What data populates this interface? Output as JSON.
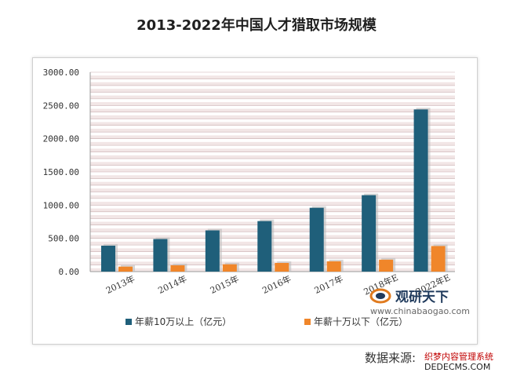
{
  "title": "2013-2022年中国人才猎取市场规模",
  "source_label": "数据来源:",
  "watermark_line1": "织梦内容管理系统",
  "watermark_line2": "DEDECMS.COM",
  "logo": {
    "name": "观研天下",
    "url": "www.chinabaogao.com"
  },
  "colors": {
    "series1": "#1f5f7a",
    "series2": "#f0862a",
    "stripe": "#f2e6e6",
    "grid": "#c9aeb0"
  },
  "chart_data": {
    "type": "bar",
    "categories": [
      "2013年",
      "2014年",
      "2015年",
      "2016年",
      "2017年",
      "2018年E",
      "2022年E"
    ],
    "series": [
      {
        "name": "年薪10万以上（亿元）",
        "values": [
          390,
          490,
          620,
          760,
          960,
          1150,
          2440
        ]
      },
      {
        "name": "年薪十万以下（亿元）",
        "values": [
          75,
          95,
          110,
          130,
          155,
          180,
          385
        ]
      }
    ],
    "yticks": [
      "0.00",
      "500.00",
      "1000.00",
      "1500.00",
      "2000.00",
      "2500.00",
      "3000.00"
    ],
    "ylim": [
      0,
      3000
    ],
    "legend": "bottom",
    "grid": true
  }
}
